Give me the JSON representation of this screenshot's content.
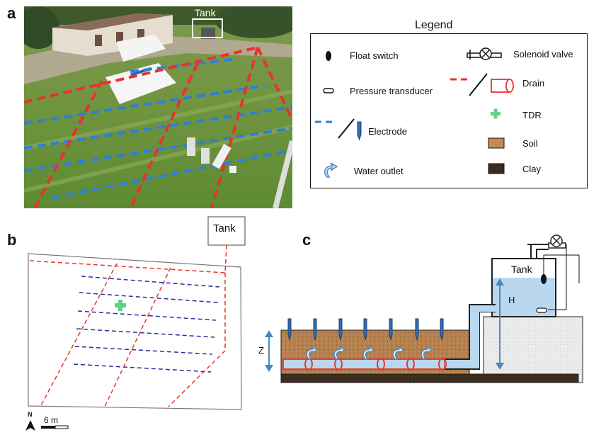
{
  "panels": {
    "a": "a",
    "b": "b",
    "c": "c"
  },
  "photo": {
    "tank_label": "Tank"
  },
  "legend": {
    "title": "Legend",
    "items": [
      {
        "icon": "float-switch-icon",
        "label": "Float switch"
      },
      {
        "icon": "pressure-transducer-icon",
        "label": "Pressure transducer"
      },
      {
        "icon": "electrode-icon",
        "label": "Electrode"
      },
      {
        "icon": "water-outlet-icon",
        "label": "Water outlet"
      },
      {
        "icon": "solenoid-valve-icon",
        "label": "Solenoid valve"
      },
      {
        "icon": "drain-icon",
        "label": "Drain"
      },
      {
        "icon": "tdr-icon",
        "label": "TDR"
      },
      {
        "icon": "soil-swatch-icon",
        "label": "Soil"
      },
      {
        "icon": "clay-swatch-icon",
        "label": "Clay"
      }
    ]
  },
  "plan": {
    "tank_label": "Tank",
    "north_label": "N",
    "scale_label": "6 m"
  },
  "section": {
    "tank_label": "Tank",
    "h_label": "H",
    "z_label": "Z"
  },
  "colors": {
    "drain": "#e8332b",
    "electrode_line": "#2f7fd6",
    "plan_electrode": "#2b2f9c",
    "tdr": "#5fd18a",
    "soil": "#b5814f",
    "clay": "#3b2a1e",
    "water": "#b9d7ef",
    "arrow_blue": "#4a88c0"
  }
}
